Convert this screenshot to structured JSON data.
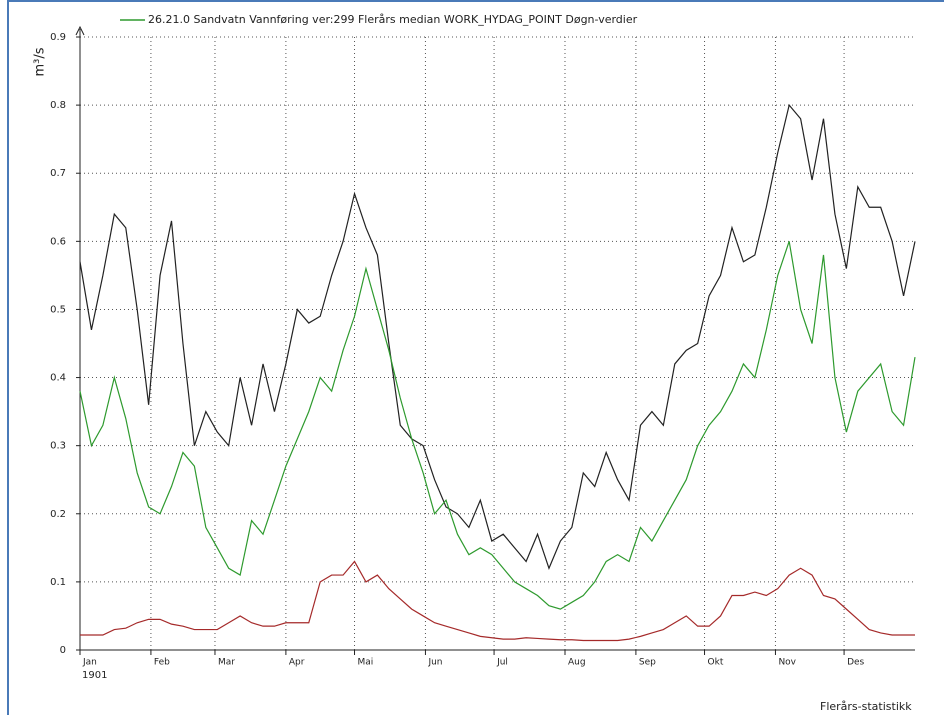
{
  "chart_data": {
    "type": "line",
    "legend_text": "26.21.0  Sandvatn  Vannføring  ver:299  Flerårs median  WORK_HYDAG_POINT  Døgn-verdier",
    "ylabel": "m³/s",
    "x_year_label": "1901",
    "footer": "Flerårs-statistikk",
    "x": [
      0,
      5,
      10,
      15,
      20,
      25,
      30,
      35,
      40,
      45,
      50,
      55,
      60,
      65,
      70,
      75,
      80,
      85,
      90,
      95,
      100,
      105,
      110,
      115,
      120,
      125,
      130,
      135,
      140,
      145,
      150,
      155,
      160,
      165,
      170,
      175,
      180,
      185,
      190,
      195,
      200,
      205,
      210,
      215,
      220,
      225,
      230,
      235,
      240,
      245,
      250,
      255,
      260,
      265,
      270,
      275,
      280,
      285,
      290,
      295,
      300,
      305,
      310,
      315,
      320,
      325,
      330,
      335,
      340,
      345,
      350,
      355,
      360,
      365
    ],
    "series": [
      {
        "color": "#222222",
        "values": [
          0.57,
          0.47,
          0.55,
          0.64,
          0.62,
          0.5,
          0.36,
          0.55,
          0.63,
          0.45,
          0.3,
          0.35,
          0.32,
          0.3,
          0.4,
          0.33,
          0.42,
          0.35,
          0.42,
          0.5,
          0.48,
          0.49,
          0.55,
          0.6,
          0.67,
          0.62,
          0.58,
          0.45,
          0.33,
          0.31,
          0.3,
          0.25,
          0.21,
          0.2,
          0.18,
          0.22,
          0.16,
          0.17,
          0.15,
          0.13,
          0.17,
          0.12,
          0.16,
          0.18,
          0.26,
          0.24,
          0.29,
          0.25,
          0.22,
          0.33,
          0.35,
          0.33,
          0.42,
          0.44,
          0.45,
          0.52,
          0.55,
          0.62,
          0.57,
          0.58,
          0.65,
          0.73,
          0.8,
          0.78,
          0.69,
          0.78,
          0.64,
          0.56,
          0.68,
          0.65,
          0.65,
          0.6,
          0.52,
          0.6
        ]
      },
      {
        "name": "Flerårs median",
        "color": "#2e9a2e",
        "values": [
          0.38,
          0.3,
          0.33,
          0.4,
          0.34,
          0.26,
          0.21,
          0.2,
          0.24,
          0.29,
          0.27,
          0.18,
          0.15,
          0.12,
          0.11,
          0.19,
          0.17,
          0.22,
          0.27,
          0.31,
          0.35,
          0.4,
          0.38,
          0.44,
          0.49,
          0.56,
          0.5,
          0.44,
          0.37,
          0.31,
          0.26,
          0.2,
          0.22,
          0.17,
          0.14,
          0.15,
          0.14,
          0.12,
          0.1,
          0.09,
          0.08,
          0.065,
          0.06,
          0.07,
          0.08,
          0.1,
          0.13,
          0.14,
          0.13,
          0.18,
          0.16,
          0.19,
          0.22,
          0.25,
          0.3,
          0.33,
          0.35,
          0.38,
          0.42,
          0.4,
          0.47,
          0.55,
          0.6,
          0.5,
          0.45,
          0.58,
          0.4,
          0.32,
          0.38,
          0.4,
          0.42,
          0.35,
          0.33,
          0.43
        ]
      },
      {
        "color": "#a52a2a",
        "values": [
          0.022,
          0.022,
          0.022,
          0.03,
          0.032,
          0.04,
          0.045,
          0.045,
          0.038,
          0.035,
          0.03,
          0.03,
          0.03,
          0.04,
          0.05,
          0.04,
          0.035,
          0.035,
          0.04,
          0.04,
          0.04,
          0.1,
          0.11,
          0.11,
          0.13,
          0.1,
          0.11,
          0.09,
          0.075,
          0.06,
          0.05,
          0.04,
          0.035,
          0.03,
          0.025,
          0.02,
          0.018,
          0.016,
          0.016,
          0.018,
          0.017,
          0.016,
          0.015,
          0.015,
          0.014,
          0.014,
          0.014,
          0.014,
          0.016,
          0.02,
          0.025,
          0.03,
          0.04,
          0.05,
          0.035,
          0.035,
          0.05,
          0.08,
          0.08,
          0.085,
          0.08,
          0.09,
          0.11,
          0.12,
          0.11,
          0.08,
          0.075,
          0.06,
          0.045,
          0.03,
          0.025,
          0.022,
          0.022,
          0.022
        ]
      }
    ],
    "xlim": [
      0,
      365
    ],
    "xticks": [
      {
        "value": 0,
        "label": "Jan"
      },
      {
        "value": 31,
        "label": "Feb"
      },
      {
        "value": 59,
        "label": "Mar"
      },
      {
        "value": 90,
        "label": "Apr"
      },
      {
        "value": 120,
        "label": "Mai"
      },
      {
        "value": 151,
        "label": "Jun"
      },
      {
        "value": 181,
        "label": "Jul"
      },
      {
        "value": 212,
        "label": "Aug"
      },
      {
        "value": 243,
        "label": "Sep"
      },
      {
        "value": 273,
        "label": "Okt"
      },
      {
        "value": 304,
        "label": "Nov"
      },
      {
        "value": 334,
        "label": "Des"
      }
    ],
    "ylim": [
      0,
      0.9
    ],
    "yticks": [
      0,
      0.1,
      0.2,
      0.3,
      0.4,
      0.5,
      0.6,
      0.7,
      0.8,
      0.9
    ],
    "grid": true
  }
}
